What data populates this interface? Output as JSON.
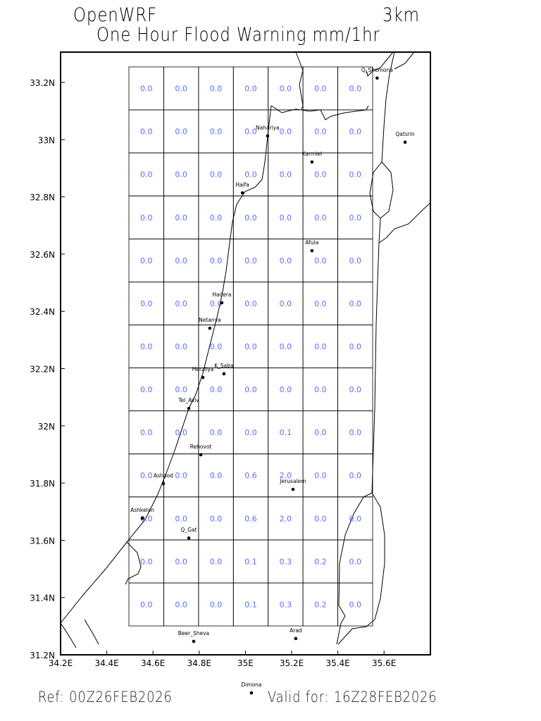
{
  "header": {
    "model": "OpenWRF",
    "resolution": "3km",
    "title": "One Hour Flood Warning mm/1hr"
  },
  "footer": {
    "ref": "Ref: 00Z26FEB2026",
    "valid": "Valid for: 16Z28FEB2026"
  },
  "map": {
    "lon_range": [
      34.2,
      35.8
    ],
    "lat_range": [
      31.2,
      33.3
    ],
    "lon_ticks": [
      "34.2E",
      "34.4E",
      "34.6E",
      "34.8E",
      "35E",
      "35.2E",
      "35.4E",
      "35.6E"
    ],
    "lat_ticks": [
      "31.2N",
      "31.4N",
      "31.6N",
      "31.8N",
      "32N",
      "32.2N",
      "32.4N",
      "32.6N",
      "32.8N",
      "33N",
      "33.2N"
    ],
    "value_color": "#5a6cff",
    "grid_values": [
      [
        "0.0",
        "0.0",
        "0.0",
        "0.0",
        "0.0",
        "0.0",
        "0.0"
      ],
      [
        "0.0",
        "0.0",
        "0.0",
        "0.0",
        "0.0",
        "0.0",
        "0.0"
      ],
      [
        "0.0",
        "0.0",
        "0.0",
        "0.0",
        "0.0",
        "0.0",
        "0.0"
      ],
      [
        "0.0",
        "0.0",
        "0.0",
        "0.0",
        "0.0",
        "0.0",
        "0.0"
      ],
      [
        "0.0",
        "0.0",
        "0.0",
        "0.0",
        "0.0",
        "0.0",
        "0.0"
      ],
      [
        "0.0",
        "0.0",
        "0.0",
        "0.0",
        "0.0",
        "0.0",
        "0.0"
      ],
      [
        "0.0",
        "0.0",
        "0.0",
        "0.0",
        "0.0",
        "0.0",
        "0.0"
      ],
      [
        "0.0",
        "0.0",
        "0.0",
        "0.0",
        "0.0",
        "0.0",
        "0.0"
      ],
      [
        "0.0",
        "0.0",
        "0.0",
        "0.0",
        "0.1",
        "0.0",
        "0.0"
      ],
      [
        "0.0",
        "0.0",
        "0.0",
        "0.6",
        "2.0",
        "0.0",
        "0.0"
      ],
      [
        "0.0",
        "0.0",
        "0.0",
        "0.6",
        "2.0",
        "0.0",
        "0.0"
      ],
      [
        "0.0",
        "0.0",
        "0.0",
        "0.1",
        "0.3",
        "0.2",
        "0.0"
      ],
      [
        "0.0",
        "0.0",
        "0.0",
        "0.1",
        "0.3",
        "0.2",
        "0.0"
      ]
    ],
    "cities": [
      {
        "name": "Q_Shemona",
        "lon": 35.57,
        "lat": 33.215
      },
      {
        "name": "Nahariya",
        "lon": 35.096,
        "lat": 33.013
      },
      {
        "name": "Qatsrin",
        "lon": 35.691,
        "lat": 32.991
      },
      {
        "name": "Karmiel",
        "lon": 35.288,
        "lat": 32.922
      },
      {
        "name": "Haifa",
        "lon": 34.987,
        "lat": 32.814
      },
      {
        "name": "Afula",
        "lon": 35.288,
        "lat": 32.612
      },
      {
        "name": "Hadera",
        "lon": 34.898,
        "lat": 32.43
      },
      {
        "name": "Netanya",
        "lon": 34.846,
        "lat": 32.341
      },
      {
        "name": "Herzliya",
        "lon": 34.816,
        "lat": 32.169
      },
      {
        "name": "K_Saba",
        "lon": 34.907,
        "lat": 32.182
      },
      {
        "name": "Tel_Aviv",
        "lon": 34.755,
        "lat": 32.061
      },
      {
        "name": "Rehovot",
        "lon": 34.807,
        "lat": 31.899
      },
      {
        "name": "Ashdod",
        "lon": 34.645,
        "lat": 31.798
      },
      {
        "name": "Jerusalem",
        "lon": 35.206,
        "lat": 31.778
      },
      {
        "name": "Ashkelon",
        "lon": 34.554,
        "lat": 31.677
      },
      {
        "name": "Q_Gat",
        "lon": 34.755,
        "lat": 31.608
      },
      {
        "name": "Beer_Sheva",
        "lon": 34.776,
        "lat": 31.247
      },
      {
        "name": "Arad",
        "lon": 35.218,
        "lat": 31.257
      },
      {
        "name": "Dimona",
        "lon": 35.026,
        "lat": 31.067
      }
    ]
  }
}
